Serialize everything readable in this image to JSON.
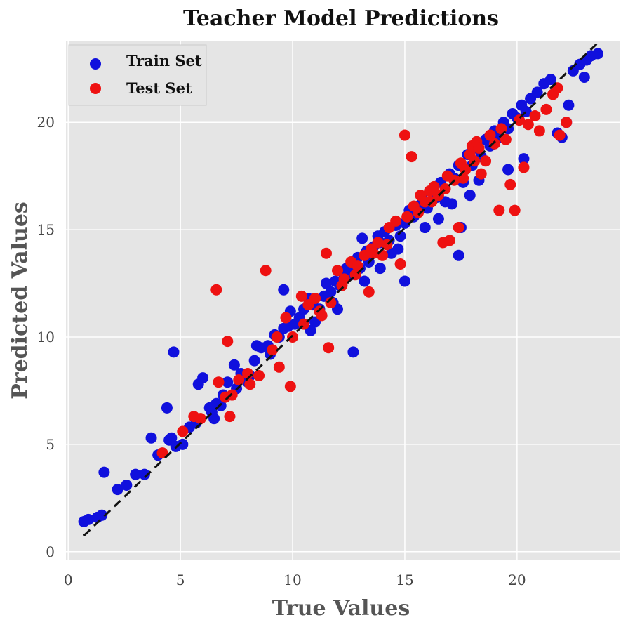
{
  "chart_data": {
    "type": "scatter",
    "title": "Teacher Model Predictions",
    "xlabel": "True Values",
    "ylabel": "Predicted Values",
    "xlim": [
      -0.1,
      24.6
    ],
    "ylim": [
      -0.4,
      23.8
    ],
    "xticks": [
      0,
      5,
      10,
      15,
      20
    ],
    "yticks": [
      0,
      5,
      10,
      15,
      20
    ],
    "grid": true,
    "legend_position": "top-left",
    "reference_line": {
      "style": "dashed",
      "color": "#111111",
      "x": [
        0.7,
        23.6
      ],
      "y": [
        0.75,
        23.7
      ]
    },
    "series": [
      {
        "name": "Train Set",
        "color": "#1010dd",
        "points": [
          [
            0.7,
            1.4
          ],
          [
            0.9,
            1.5
          ],
          [
            1.3,
            1.6
          ],
          [
            1.5,
            1.7
          ],
          [
            1.6,
            3.7
          ],
          [
            2.2,
            2.9
          ],
          [
            2.6,
            3.1
          ],
          [
            3.0,
            3.6
          ],
          [
            3.4,
            3.6
          ],
          [
            3.7,
            5.3
          ],
          [
            4.0,
            4.5
          ],
          [
            4.4,
            6.7
          ],
          [
            4.5,
            5.2
          ],
          [
            4.6,
            5.3
          ],
          [
            4.8,
            4.9
          ],
          [
            5.1,
            5.0
          ],
          [
            5.4,
            5.8
          ],
          [
            5.7,
            6.0
          ],
          [
            4.7,
            9.3
          ],
          [
            5.8,
            7.8
          ],
          [
            6.0,
            8.1
          ],
          [
            6.3,
            6.7
          ],
          [
            6.4,
            6.5
          ],
          [
            6.6,
            6.9
          ],
          [
            6.8,
            6.8
          ],
          [
            6.9,
            7.3
          ],
          [
            7.1,
            7.9
          ],
          [
            7.4,
            8.7
          ],
          [
            7.5,
            7.6
          ],
          [
            7.7,
            8.3
          ],
          [
            8.0,
            7.9
          ],
          [
            8.3,
            8.9
          ],
          [
            8.4,
            9.6
          ],
          [
            8.6,
            9.5
          ],
          [
            8.9,
            9.6
          ],
          [
            9.2,
            10.1
          ],
          [
            9.4,
            10.0
          ],
          [
            9.6,
            10.4
          ],
          [
            9.8,
            10.5
          ],
          [
            9.9,
            11.2
          ],
          [
            9.6,
            12.2
          ],
          [
            10.1,
            10.6
          ],
          [
            10.3,
            10.9
          ],
          [
            10.5,
            11.3
          ],
          [
            10.7,
            11.8
          ],
          [
            10.9,
            11.5
          ],
          [
            11.0,
            10.7
          ],
          [
            11.2,
            11.3
          ],
          [
            11.4,
            11.9
          ],
          [
            11.5,
            12.5
          ],
          [
            11.7,
            12.1
          ],
          [
            11.9,
            12.6
          ],
          [
            12.0,
            11.3
          ],
          [
            12.1,
            12.4
          ],
          [
            12.3,
            12.8
          ],
          [
            12.4,
            13.2
          ],
          [
            12.6,
            12.9
          ],
          [
            12.7,
            13.4
          ],
          [
            12.9,
            13.7
          ],
          [
            13.0,
            13.2
          ],
          [
            13.1,
            14.6
          ],
          [
            13.3,
            14.0
          ],
          [
            13.4,
            13.5
          ],
          [
            13.6,
            14.2
          ],
          [
            13.8,
            14.7
          ],
          [
            13.9,
            14.4
          ],
          [
            14.1,
            14.9
          ],
          [
            14.3,
            14.5
          ],
          [
            14.4,
            13.9
          ],
          [
            14.6,
            15.2
          ],
          [
            14.8,
            14.7
          ],
          [
            15.0,
            15.3
          ],
          [
            12.7,
            9.3
          ],
          [
            15.0,
            12.6
          ],
          [
            15.2,
            15.9
          ],
          [
            15.4,
            15.6
          ],
          [
            15.6,
            16.1
          ],
          [
            15.8,
            16.4
          ],
          [
            16.0,
            16.0
          ],
          [
            16.2,
            16.8
          ],
          [
            16.4,
            16.5
          ],
          [
            16.6,
            17.2
          ],
          [
            16.8,
            16.3
          ],
          [
            17.0,
            17.6
          ],
          [
            17.2,
            17.4
          ],
          [
            17.4,
            18.0
          ],
          [
            17.5,
            15.1
          ],
          [
            17.4,
            13.8
          ],
          [
            17.6,
            17.2
          ],
          [
            17.8,
            18.5
          ],
          [
            18.0,
            18.0
          ],
          [
            18.2,
            18.8
          ],
          [
            18.4,
            18.4
          ],
          [
            18.6,
            19.2
          ],
          [
            18.8,
            18.9
          ],
          [
            19.0,
            19.6
          ],
          [
            19.2,
            19.3
          ],
          [
            19.4,
            20.0
          ],
          [
            19.6,
            19.7
          ],
          [
            19.8,
            20.4
          ],
          [
            20.0,
            20.2
          ],
          [
            20.2,
            20.8
          ],
          [
            20.4,
            20.5
          ],
          [
            20.6,
            21.1
          ],
          [
            20.9,
            21.4
          ],
          [
            21.2,
            21.8
          ],
          [
            21.5,
            22.0
          ],
          [
            21.8,
            19.5
          ],
          [
            22.0,
            19.3
          ],
          [
            22.3,
            20.8
          ],
          [
            22.5,
            22.4
          ],
          [
            22.8,
            22.7
          ],
          [
            23.0,
            22.1
          ],
          [
            23.3,
            23.1
          ],
          [
            23.6,
            23.2
          ],
          [
            23.1,
            22.9
          ],
          [
            20.3,
            18.3
          ],
          [
            19.6,
            17.8
          ],
          [
            18.3,
            17.3
          ],
          [
            17.9,
            16.6
          ],
          [
            17.1,
            16.2
          ],
          [
            16.5,
            15.5
          ],
          [
            15.9,
            15.1
          ],
          [
            14.7,
            14.1
          ],
          [
            13.9,
            13.2
          ],
          [
            13.2,
            12.6
          ],
          [
            11.8,
            11.6
          ],
          [
            10.8,
            10.3
          ],
          [
            9.0,
            9.2
          ],
          [
            8.1,
            8.2
          ],
          [
            6.5,
            6.2
          ],
          [
            22.2,
            20.0
          ]
        ]
      },
      {
        "name": "Test Set",
        "color": "#ee1111",
        "points": [
          [
            4.2,
            4.6
          ],
          [
            5.1,
            5.6
          ],
          [
            5.6,
            6.3
          ],
          [
            5.9,
            6.2
          ],
          [
            6.6,
            12.2
          ],
          [
            6.7,
            7.9
          ],
          [
            7.1,
            9.8
          ],
          [
            7.2,
            6.3
          ],
          [
            7.3,
            7.3
          ],
          [
            7.6,
            8.0
          ],
          [
            8.1,
            7.8
          ],
          [
            8.5,
            8.2
          ],
          [
            8.8,
            13.1
          ],
          [
            9.3,
            10.0
          ],
          [
            9.4,
            8.6
          ],
          [
            9.7,
            10.9
          ],
          [
            9.9,
            7.7
          ],
          [
            10.0,
            10.0
          ],
          [
            10.4,
            11.9
          ],
          [
            10.7,
            11.5
          ],
          [
            11.0,
            11.8
          ],
          [
            11.2,
            11.2
          ],
          [
            11.5,
            13.9
          ],
          [
            11.6,
            9.5
          ],
          [
            11.7,
            11.6
          ],
          [
            12.0,
            13.1
          ],
          [
            12.3,
            12.7
          ],
          [
            12.6,
            13.5
          ],
          [
            12.9,
            13.3
          ],
          [
            13.2,
            13.8
          ],
          [
            13.4,
            12.1
          ],
          [
            13.5,
            14.1
          ],
          [
            13.8,
            14.4
          ],
          [
            14.0,
            13.8
          ],
          [
            14.3,
            15.1
          ],
          [
            14.6,
            15.4
          ],
          [
            14.8,
            13.4
          ],
          [
            15.0,
            19.4
          ],
          [
            15.1,
            15.6
          ],
          [
            15.3,
            18.4
          ],
          [
            15.4,
            16.1
          ],
          [
            15.7,
            16.6
          ],
          [
            15.9,
            16.3
          ],
          [
            16.1,
            16.8
          ],
          [
            16.3,
            17.0
          ],
          [
            16.5,
            16.6
          ],
          [
            16.7,
            14.4
          ],
          [
            16.9,
            17.5
          ],
          [
            17.0,
            14.5
          ],
          [
            17.2,
            17.3
          ],
          [
            17.4,
            15.1
          ],
          [
            17.5,
            18.1
          ],
          [
            17.7,
            17.8
          ],
          [
            17.9,
            18.5
          ],
          [
            18.0,
            18.9
          ],
          [
            18.2,
            19.1
          ],
          [
            18.4,
            17.6
          ],
          [
            18.6,
            18.2
          ],
          [
            18.8,
            19.4
          ],
          [
            19.0,
            19.0
          ],
          [
            19.2,
            15.9
          ],
          [
            19.3,
            19.7
          ],
          [
            19.5,
            19.2
          ],
          [
            19.7,
            17.1
          ],
          [
            19.9,
            15.9
          ],
          [
            20.1,
            20.1
          ],
          [
            20.3,
            17.9
          ],
          [
            20.5,
            19.9
          ],
          [
            20.8,
            20.3
          ],
          [
            21.0,
            19.6
          ],
          [
            21.3,
            20.6
          ],
          [
            21.6,
            21.3
          ],
          [
            21.8,
            21.6
          ],
          [
            22.2,
            20.0
          ],
          [
            21.9,
            19.4
          ],
          [
            18.1,
            18.2
          ],
          [
            18.3,
            18.8
          ],
          [
            17.6,
            17.4
          ],
          [
            16.8,
            16.9
          ],
          [
            16.2,
            16.3
          ],
          [
            15.6,
            15.8
          ],
          [
            14.2,
            14.3
          ],
          [
            13.6,
            13.9
          ],
          [
            12.8,
            12.9
          ],
          [
            12.2,
            12.4
          ],
          [
            11.3,
            11.0
          ],
          [
            10.5,
            10.6
          ],
          [
            9.1,
            9.4
          ],
          [
            8.0,
            8.3
          ],
          [
            7.0,
            7.2
          ]
        ]
      }
    ]
  }
}
